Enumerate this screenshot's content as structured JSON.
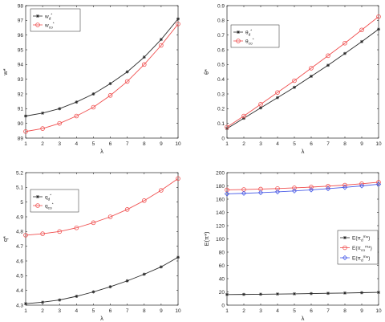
{
  "colors": {
    "series_black": "#2a2a2a",
    "series_red": "#f05050",
    "series_blue": "#4b5ee8",
    "axis": "#262626"
  },
  "chart_data": [
    {
      "id": "tl",
      "type": "line",
      "xlabel": "λ",
      "ylabel": "w*",
      "x": [
        1,
        2,
        3,
        4,
        5,
        6,
        7,
        8,
        9,
        10
      ],
      "xlim": [
        1,
        10
      ],
      "ylim": [
        89,
        98
      ],
      "yticks": [
        "89",
        "90",
        "91",
        "92",
        "93",
        "94",
        "95",
        "96",
        "97",
        "98"
      ],
      "legend_position": "top-left",
      "series": [
        {
          "name": "w_d*",
          "base": "w",
          "sub": "d",
          "color": "#2a2a2a",
          "marker": "star",
          "values": [
            90.5,
            90.7,
            91.0,
            91.45,
            92.0,
            92.7,
            93.5,
            94.5,
            95.7,
            97.1
          ]
        },
        {
          "name": "w_co*",
          "base": "w",
          "sub": "co",
          "color": "#f05050",
          "marker": "circle",
          "values": [
            89.45,
            89.65,
            90.0,
            90.5,
            91.1,
            91.9,
            92.85,
            94.0,
            95.3,
            96.75
          ]
        }
      ]
    },
    {
      "id": "tr",
      "type": "line",
      "xlabel": "λ",
      "ylabel": "θ*",
      "x": [
        1,
        2,
        3,
        4,
        5,
        6,
        7,
        8,
        9,
        10
      ],
      "xlim": [
        1,
        10
      ],
      "ylim": [
        0,
        0.9
      ],
      "yticks": [
        "0",
        "0.1",
        "0.2",
        "0.3",
        "0.4",
        "0.5",
        "0.6",
        "0.7",
        "0.8",
        "0.9"
      ],
      "legend_position": "top-left",
      "series": [
        {
          "name": "θ_d*",
          "base": "θ",
          "sub": "d",
          "color": "#2a2a2a",
          "marker": "star",
          "values": [
            0.065,
            0.135,
            0.205,
            0.275,
            0.345,
            0.42,
            0.495,
            0.575,
            0.655,
            0.74
          ]
        },
        {
          "name": "θ_co*",
          "base": "θ",
          "sub": "co",
          "color": "#f05050",
          "marker": "circle",
          "values": [
            0.075,
            0.15,
            0.23,
            0.31,
            0.39,
            0.475,
            0.56,
            0.645,
            0.735,
            0.825
          ]
        }
      ]
    },
    {
      "id": "bl",
      "type": "line",
      "xlabel": "λ",
      "ylabel": "q*",
      "x": [
        1,
        2,
        3,
        4,
        5,
        6,
        7,
        8,
        9,
        10
      ],
      "xlim": [
        1,
        10
      ],
      "ylim": [
        4.3,
        5.2
      ],
      "yticks": [
        "4.3",
        "4.4",
        "4.5",
        "4.6",
        "4.7",
        "4.8",
        "4.9",
        "5",
        "5.1",
        "5.2"
      ],
      "legend_position": "top-left",
      "series": [
        {
          "name": "q_d*",
          "base": "q",
          "sub": "d",
          "color": "#2a2a2a",
          "marker": "star",
          "values": [
            4.31,
            4.32,
            4.335,
            4.36,
            4.39,
            4.425,
            4.465,
            4.51,
            4.56,
            4.625
          ]
        },
        {
          "name": "q_co*",
          "base": "q",
          "sub": "co",
          "color": "#f05050",
          "marker": "circle",
          "values": [
            4.775,
            4.785,
            4.8,
            4.825,
            4.86,
            4.9,
            4.95,
            5.01,
            5.08,
            5.16
          ]
        }
      ]
    },
    {
      "id": "br",
      "type": "line",
      "xlabel": "λ",
      "ylabel": "E(π*)",
      "x": [
        1,
        2,
        3,
        4,
        5,
        6,
        7,
        8,
        9,
        10
      ],
      "xlim": [
        1,
        10
      ],
      "ylim": [
        0,
        200
      ],
      "yticks": [
        "0",
        "20",
        "40",
        "60",
        "80",
        "100",
        "120",
        "140",
        "160",
        "180",
        "200"
      ],
      "legend_position": "right",
      "series": [
        {
          "name": "E(π_d^m*)",
          "base": "E(π",
          "sub": "d",
          "sup": "m",
          "tail": "*)",
          "color": "#2a2a2a",
          "marker": "star",
          "values": [
            16,
            16.2,
            16.5,
            16.8,
            17.1,
            17.5,
            17.9,
            18.3,
            18.8,
            19.3
          ]
        },
        {
          "name": "E(π_co^m*)",
          "base": "E(π",
          "sub": "co",
          "sup": "m",
          "tail": "*)",
          "color": "#f05050",
          "marker": "circle",
          "values": [
            174,
            174.5,
            175.2,
            176,
            177,
            178.2,
            179.6,
            181.2,
            183.2,
            185.5
          ]
        },
        {
          "name": "E(π_d^m*)",
          "base": "E(π",
          "sub": "d",
          "sup": "m",
          "tail": "*)",
          "color": "#4b5ee8",
          "marker": "diamond",
          "values": [
            168,
            168.8,
            169.8,
            171,
            172.4,
            174,
            175.8,
            177.8,
            180,
            182.5
          ]
        }
      ]
    }
  ]
}
